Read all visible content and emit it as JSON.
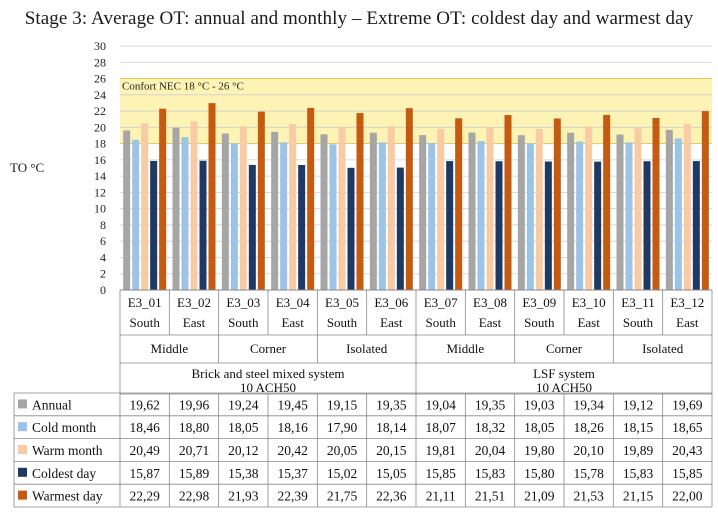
{
  "chart_data": {
    "type": "bar",
    "title": "Stage 3: Average OT: annual and monthly – Extreme OT: coldest day and warmest day",
    "ylabel": "TO °C",
    "ylim": [
      0,
      30
    ],
    "yticks": [
      0,
      2,
      4,
      6,
      8,
      10,
      12,
      14,
      16,
      18,
      20,
      22,
      24,
      26,
      28,
      30
    ],
    "grid": true,
    "comfort_band": {
      "label": "Confort NEC 18 °C - 26 °C",
      "from": 18,
      "to": 26,
      "color": "#fdf3b4"
    },
    "categories": [
      "E3_01",
      "E3_02",
      "E3_03",
      "E3_04",
      "E3_05",
      "E3_06",
      "E3_07",
      "E3_08",
      "E3_09",
      "E3_10",
      "E3_11",
      "E3_12"
    ],
    "orientations": [
      "South",
      "East",
      "South",
      "East",
      "South",
      "East",
      "South",
      "East",
      "South",
      "East",
      "South",
      "East"
    ],
    "positions": [
      "Middle",
      "Corner",
      "Isolated",
      "Middle",
      "Corner",
      "Isolated"
    ],
    "systems": [
      "Brick and steel mixed system\n10 ACH50",
      "LSF system\n10 ACH50"
    ],
    "series": [
      {
        "name": "Annual",
        "color": "#a6a6a6",
        "values": [
          19.62,
          19.96,
          19.24,
          19.45,
          19.15,
          19.35,
          19.04,
          19.35,
          19.03,
          19.34,
          19.12,
          19.69
        ],
        "labels": [
          "19,62",
          "19,96",
          "19,24",
          "19,45",
          "19,15",
          "19,35",
          "19,04",
          "19,35",
          "19,03",
          "19,34",
          "19,12",
          "19,69"
        ]
      },
      {
        "name": "Cold month",
        "color": "#9dc3e6",
        "values": [
          18.46,
          18.8,
          18.05,
          18.16,
          17.9,
          18.14,
          18.07,
          18.32,
          18.05,
          18.26,
          18.15,
          18.65
        ],
        "labels": [
          "18,46",
          "18,80",
          "18,05",
          "18,16",
          "17,90",
          "18,14",
          "18,07",
          "18,32",
          "18,05",
          "18,26",
          "18,15",
          "18,65"
        ]
      },
      {
        "name": "Warm month",
        "color": "#f8cba5",
        "values": [
          20.49,
          20.71,
          20.12,
          20.42,
          20.05,
          20.15,
          19.81,
          20.04,
          19.8,
          20.1,
          19.89,
          20.43
        ],
        "labels": [
          "20,49",
          "20,71",
          "20,12",
          "20,42",
          "20,05",
          "20,15",
          "19,81",
          "20,04",
          "19,80",
          "20,10",
          "19,89",
          "20,43"
        ]
      },
      {
        "name": "Coldest day",
        "color": "#1f3864",
        "values": [
          15.87,
          15.89,
          15.38,
          15.37,
          15.02,
          15.05,
          15.85,
          15.83,
          15.8,
          15.78,
          15.83,
          15.85
        ],
        "labels": [
          "15,87",
          "15,89",
          "15,38",
          "15,37",
          "15,02",
          "15,05",
          "15,85",
          "15,83",
          "15,80",
          "15,78",
          "15,83",
          "15,85"
        ]
      },
      {
        "name": "Warmest day",
        "color": "#c55a11",
        "values": [
          22.29,
          22.98,
          21.93,
          22.39,
          21.75,
          22.36,
          21.11,
          21.51,
          21.09,
          21.53,
          21.15,
          22.0
        ],
        "labels": [
          "22,29",
          "22,98",
          "21,93",
          "22,39",
          "21,75",
          "22,36",
          "21,11",
          "21,51",
          "21,09",
          "21,53",
          "21,15",
          "22,00"
        ]
      }
    ]
  }
}
